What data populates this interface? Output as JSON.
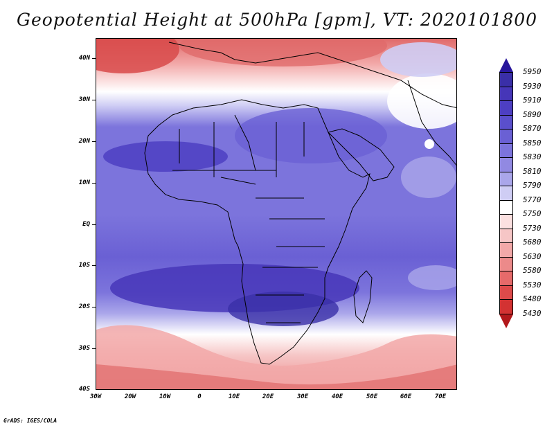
{
  "title": "Geopotential Height at 500hPa [gpm], VT: 2020101800",
  "footer": "GrADS: IGES/COLA",
  "map": {
    "projection": "latlon",
    "lon_range": [
      -30,
      75
    ],
    "lat_range": [
      -40,
      45
    ],
    "y_ticks": [
      "40N",
      "30N",
      "20N",
      "10N",
      "EQ",
      "10S",
      "20S",
      "30S",
      "40S"
    ],
    "x_ticks": [
      "30W",
      "20W",
      "10W",
      "0",
      "10E",
      "20E",
      "30E",
      "40E",
      "50E",
      "60E",
      "70E"
    ]
  },
  "colorbar": {
    "labels": [
      "5950",
      "5930",
      "5910",
      "5890",
      "5870",
      "5850",
      "5830",
      "5810",
      "5790",
      "5770",
      "5750",
      "5730",
      "5680",
      "5630",
      "5580",
      "5530",
      "5480",
      "5430"
    ],
    "top_color": "#28179c",
    "bottom_color": "#b2181b",
    "colors": [
      "#3a2fa8",
      "#4636b8",
      "#4d3fc2",
      "#5a4fcc",
      "#6a60d4",
      "#7c74dc",
      "#9189e2",
      "#aaa6ea",
      "#cfcdf4",
      "#ffffff",
      "#fbe0e0",
      "#f6c6c6",
      "#f2a8a8",
      "#ec8a8a",
      "#e66a6a",
      "#dd4a4a",
      "#d33232"
    ]
  }
}
